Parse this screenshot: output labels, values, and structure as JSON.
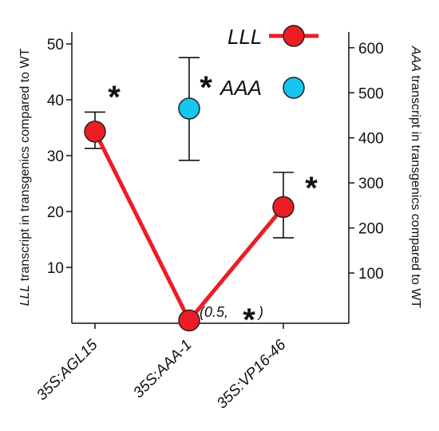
{
  "chart_data": {
    "type": "line",
    "categories": [
      "35S:AGL15",
      "35S:AAA-1",
      "35S:VP16-46"
    ],
    "left_axis": {
      "label_italic": "LLL",
      "label_rest": " transcript in transgenics compared to WT",
      "ticks": [
        "10",
        "20",
        "30",
        "40",
        "50"
      ],
      "range": [
        0,
        50
      ]
    },
    "right_axis": {
      "label_italic": "AAA",
      "label_rest": " transcript in transgenics compared to WT",
      "ticks": [
        "100",
        "200",
        "300",
        "400",
        "500",
        "600"
      ],
      "range": [
        0,
        600
      ]
    },
    "series": [
      {
        "name": "LLL",
        "axis": "left",
        "color": "#ee1c25",
        "values": [
          34.3,
          0.5,
          20.8
        ],
        "error_low": [
          31.3,
          null,
          15.3
        ],
        "error_high": [
          37.8,
          null,
          27.0
        ]
      },
      {
        "name": "AAA",
        "axis": "right",
        "color": "#16c6ef",
        "points": [
          {
            "category": "35S:AAA-1",
            "value": 465,
            "error_low": 350,
            "error_high": 578
          }
        ]
      }
    ],
    "annotations": {
      "star": "*",
      "note_text": "(0.5,",
      "note_close": ")"
    },
    "legend": {
      "position": "top-right"
    },
    "grid": false
  }
}
